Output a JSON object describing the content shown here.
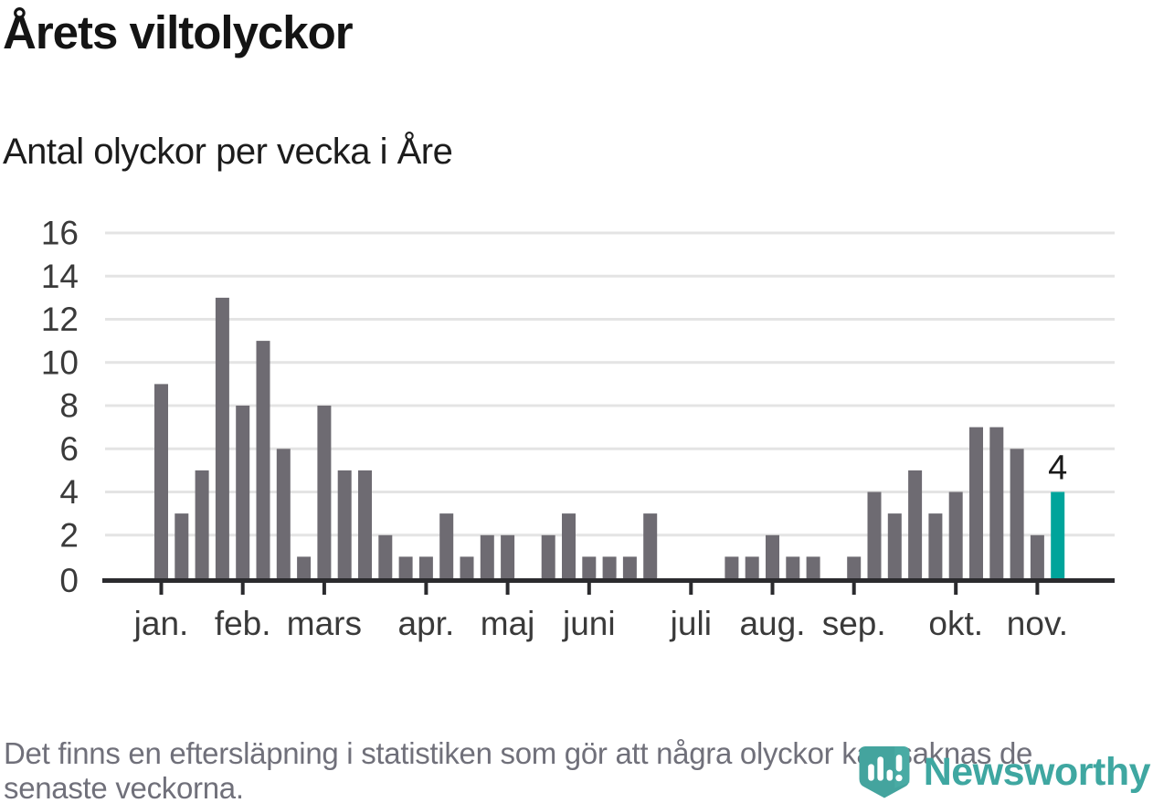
{
  "header": {
    "title": "Årets viltolyckor",
    "subtitle": "Antal olyckor per vecka i Åre"
  },
  "footer": {
    "note_lines": [
      "Det finns en eftersläpning i statistiken som gör att några olyckor kan saknas de",
      "senaste veckorna."
    ],
    "brand_name": "Newsworthy"
  },
  "chart_data": {
    "type": "bar",
    "title": "Årets viltolyckor",
    "subtitle": "Antal olyckor per vecka i Åre",
    "xlabel": "",
    "ylabel": "Antal olyckor per vecka",
    "values": [
      9,
      3,
      5,
      13,
      8,
      11,
      6,
      1,
      8,
      5,
      5,
      2,
      1,
      1,
      3,
      1,
      2,
      2,
      0,
      2,
      3,
      1,
      1,
      1,
      3,
      0,
      0,
      0,
      1,
      1,
      2,
      1,
      1,
      0,
      1,
      4,
      3,
      5,
      3,
      4,
      7,
      7,
      6,
      2,
      4
    ],
    "weeks_count": 45,
    "highlight_index": 44,
    "annotation_label": "4",
    "ylim": [
      0,
      16
    ],
    "yticks": [
      0,
      2,
      4,
      6,
      8,
      10,
      12,
      14,
      16
    ],
    "month_ticks": [
      {
        "label": "jan.",
        "week": 1
      },
      {
        "label": "feb.",
        "week": 5
      },
      {
        "label": "mars",
        "week": 9
      },
      {
        "label": "apr.",
        "week": 14
      },
      {
        "label": "maj",
        "week": 18
      },
      {
        "label": "juni",
        "week": 22
      },
      {
        "label": "juli",
        "week": 27
      },
      {
        "label": "aug.",
        "week": 31
      },
      {
        "label": "sep.",
        "week": 35
      },
      {
        "label": "okt.",
        "week": 40
      },
      {
        "label": "nov.",
        "week": 44
      }
    ],
    "grid": true,
    "legend_position": "none",
    "colors": {
      "bar": "#6E6B72",
      "highlight": "#00A49B",
      "grid": "#E4E4E4",
      "axis": "#2B2B2E",
      "tick_label": "#3A3A3A",
      "annotation": "#1A1A1A",
      "brand_teal": "#3FA7A1"
    }
  }
}
